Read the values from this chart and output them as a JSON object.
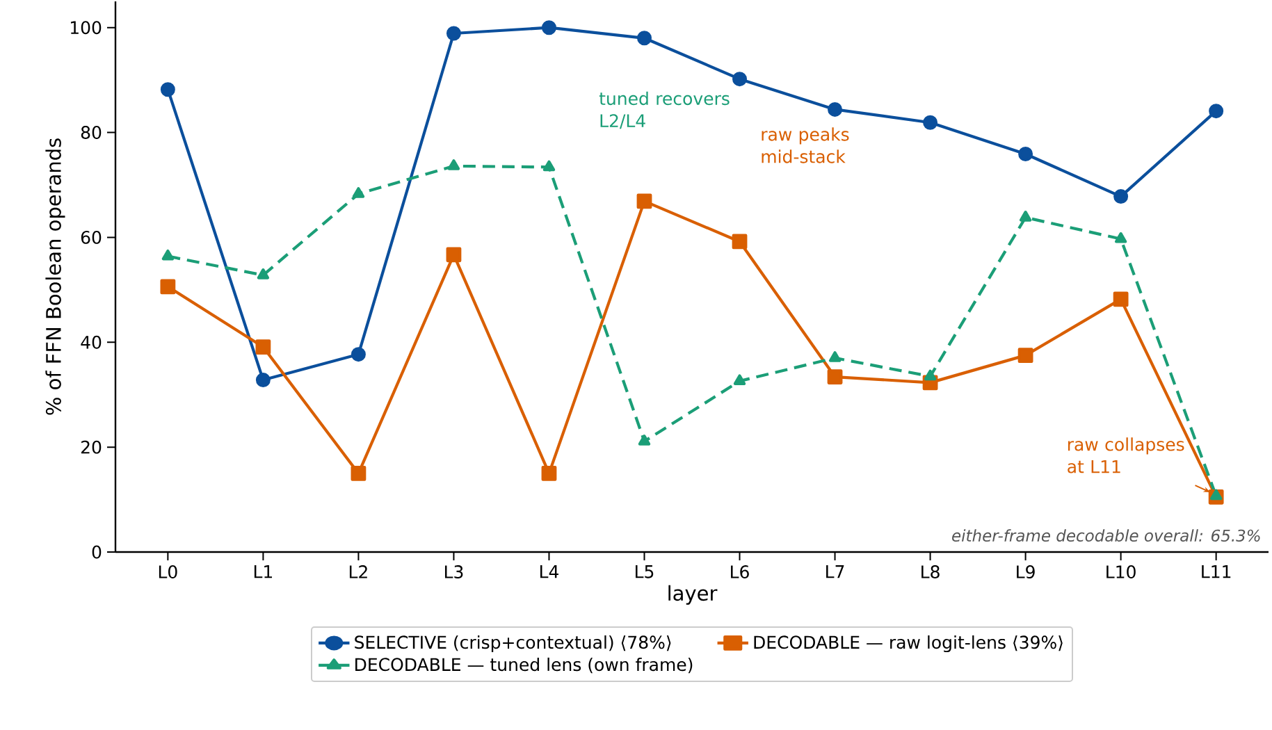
{
  "chart_data": {
    "type": "line",
    "xlabel": "layer",
    "ylabel": "% of FFN Boolean operands",
    "categories": [
      "L0",
      "L1",
      "L2",
      "L3",
      "L4",
      "L5",
      "L6",
      "L7",
      "L8",
      "L9",
      "L10",
      "L11"
    ],
    "ylim": [
      0,
      105
    ],
    "yticks": [
      0,
      20,
      40,
      60,
      80,
      100
    ],
    "legend": "bottom",
    "grid": false,
    "series": [
      {
        "name": "SELECTIVE (crisp+contextual)  ⟨78%⟩",
        "color": "#0b4f9c",
        "marker": "circle",
        "line_style": "solid",
        "values": [
          88.2,
          32.8,
          37.7,
          98.9,
          100,
          98.0,
          90.2,
          84.4,
          81.9,
          75.9,
          67.8,
          84.1
        ]
      },
      {
        "name": "DECODABLE — raw logit-lens  ⟨39%⟩",
        "color": "#d95f02",
        "marker": "square",
        "line_style": "solid",
        "values": [
          50.6,
          39.1,
          15.0,
          56.7,
          15.0,
          66.9,
          59.2,
          33.4,
          32.3,
          37.5,
          48.2,
          10.5
        ]
      },
      {
        "name": "DECODABLE — tuned lens (own frame)",
        "color": "#1b9e77",
        "marker": "triangle",
        "line_style": "dashed",
        "values": [
          56.4,
          52.8,
          68.3,
          73.6,
          73.4,
          21.1,
          32.6,
          37.0,
          33.5,
          63.8,
          59.7,
          10.7
        ]
      }
    ],
    "annotations": [
      "tuned recovers L2/L4",
      "raw peaks mid-stack",
      {
        "text": "raw collapses at L11",
        "x": "L11",
        "y": 10.5
      },
      "either-frame decodable overall: 65.3%"
    ]
  }
}
